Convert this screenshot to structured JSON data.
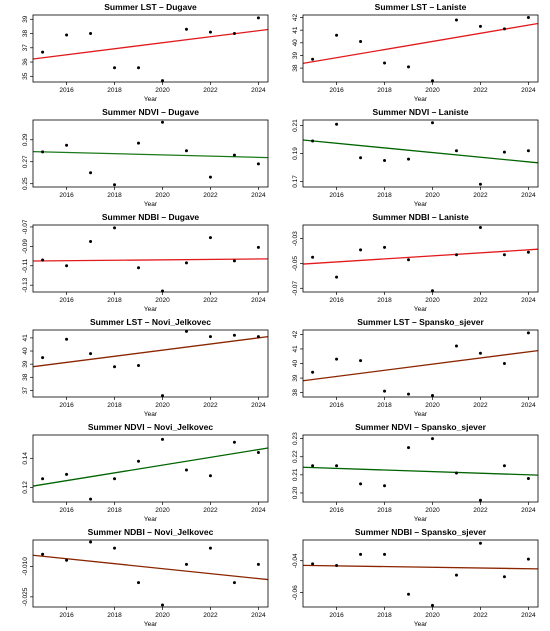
{
  "chart_data": [
    {
      "type": "scatter",
      "title": "Summer LST – Dugave",
      "xlabel": "Year",
      "x": [
        2015,
        2016,
        2017,
        2018,
        2019,
        2020,
        2021,
        2022,
        2023,
        2024
      ],
      "y": [
        36.7,
        37.9,
        38.0,
        35.6,
        35.6,
        34.7,
        38.3,
        38.1,
        38.0,
        39.1
      ],
      "trend": [
        36.3,
        38.2
      ],
      "trend_color": "#e31a1c",
      "xlim": [
        2014.6,
        2024.4
      ],
      "ylim": [
        34.6,
        39.3
      ],
      "xticks": [
        2016,
        2018,
        2020,
        2022,
        2024
      ],
      "yticks": [
        35,
        36,
        37,
        38,
        39
      ],
      "xtick_labels": [
        "2016",
        "2018",
        "2020",
        "2022",
        "2024"
      ],
      "ytick_labels": [
        "35",
        "36",
        "37",
        "38",
        "39"
      ]
    },
    {
      "type": "scatter",
      "title": "Summer LST – Laniste",
      "xlabel": "Year",
      "x": [
        2015,
        2016,
        2017,
        2018,
        2019,
        2020,
        2021,
        2022,
        2023,
        2024
      ],
      "y": [
        38.7,
        40.6,
        40.1,
        38.4,
        38.1,
        37.0,
        41.8,
        41.3,
        41.1,
        42.0
      ],
      "trend": [
        38.5,
        41.4
      ],
      "trend_color": "#e31a1c",
      "xlim": [
        2014.6,
        2024.4
      ],
      "ylim": [
        36.9,
        42.2
      ],
      "xticks": [
        2016,
        2018,
        2020,
        2022,
        2024
      ],
      "yticks": [
        38,
        39,
        40,
        41,
        42
      ],
      "xtick_labels": [
        "2016",
        "2018",
        "2020",
        "2022",
        "2024"
      ],
      "ytick_labels": [
        "38",
        "39",
        "40",
        "41",
        "42"
      ]
    },
    {
      "type": "scatter",
      "title": "Summer NDVI – Dugave",
      "xlabel": "Year",
      "x": [
        2015,
        2016,
        2017,
        2018,
        2019,
        2020,
        2021,
        2022,
        2023,
        2024
      ],
      "y": [
        0.279,
        0.285,
        0.26,
        0.249,
        0.287,
        0.306,
        0.28,
        0.256,
        0.276,
        0.268
      ],
      "trend": [
        0.279,
        0.274
      ],
      "trend_color": "#1a7a1a",
      "xlim": [
        2014.6,
        2024.4
      ],
      "ylim": [
        0.247,
        0.308
      ],
      "xticks": [
        2016,
        2018,
        2020,
        2022,
        2024
      ],
      "yticks": [
        0.25,
        0.27,
        0.29
      ],
      "xtick_labels": [
        "2016",
        "2018",
        "2020",
        "2022",
        "2024"
      ],
      "ytick_labels": [
        "0.25",
        "0.27",
        "0.29"
      ]
    },
    {
      "type": "scatter",
      "title": "Summer NDVI – Laniste",
      "xlabel": "Year",
      "x": [
        2015,
        2016,
        2017,
        2018,
        2019,
        2020,
        2021,
        2022,
        2023,
        2024
      ],
      "y": [
        0.199,
        0.211,
        0.187,
        0.185,
        0.186,
        0.212,
        0.192,
        0.168,
        0.191,
        0.192
      ],
      "trend": [
        0.199,
        0.184
      ],
      "trend_color": "#006400",
      "xlim": [
        2014.6,
        2024.4
      ],
      "ylim": [
        0.166,
        0.214
      ],
      "xticks": [
        2016,
        2018,
        2020,
        2022,
        2024
      ],
      "yticks": [
        0.17,
        0.19,
        0.21
      ],
      "xtick_labels": [
        "2016",
        "2018",
        "2020",
        "2022",
        "2024"
      ],
      "ytick_labels": [
        "0.17",
        "0.19",
        "0.21"
      ]
    },
    {
      "type": "scatter",
      "title": "Summer NDBI – Dugave",
      "xlabel": "Year",
      "x": [
        2015,
        2016,
        2017,
        2018,
        2019,
        2020,
        2021,
        2022,
        2023,
        2024
      ],
      "y": [
        -0.104,
        -0.11,
        -0.085,
        -0.071,
        -0.112,
        -0.136,
        -0.107,
        -0.081,
        -0.105,
        -0.091
      ],
      "trend": [
        -0.105,
        -0.103
      ],
      "trend_color": "#e31a1c",
      "xlim": [
        2014.6,
        2024.4
      ],
      "ylim": [
        -0.137,
        -0.068
      ],
      "xticks": [
        2016,
        2018,
        2020,
        2022,
        2024
      ],
      "yticks": [
        -0.13,
        -0.11,
        -0.09,
        -0.07
      ],
      "xtick_labels": [
        "2016",
        "2018",
        "2020",
        "2022",
        "2024"
      ],
      "ytick_labels": [
        "-0.13",
        "-0.11",
        "-0.09",
        "-0.07"
      ]
    },
    {
      "type": "scatter",
      "title": "Summer NDBI – Laniste",
      "xlabel": "Year",
      "x": [
        2015,
        2016,
        2017,
        2018,
        2019,
        2020,
        2021,
        2022,
        2023,
        2024
      ],
      "y": [
        -0.045,
        -0.061,
        -0.039,
        -0.037,
        -0.047,
        -0.072,
        -0.043,
        -0.021,
        -0.043,
        -0.041
      ],
      "trend": [
        -0.05,
        -0.039
      ],
      "trend_color": "#e31a1c",
      "xlim": [
        2014.6,
        2024.4
      ],
      "ylim": [
        -0.073,
        -0.019
      ],
      "xticks": [
        2016,
        2018,
        2020,
        2022,
        2024
      ],
      "yticks": [
        -0.07,
        -0.05,
        -0.03
      ],
      "xtick_labels": [
        "2016",
        "2018",
        "2020",
        "2022",
        "2024"
      ],
      "ytick_labels": [
        "-0.07",
        "-0.05",
        "-0.03"
      ]
    },
    {
      "type": "scatter",
      "title": "Summer LST – Novi_Jelkovec",
      "xlabel": "Year",
      "x": [
        2015,
        2016,
        2017,
        2018,
        2019,
        2020,
        2021,
        2022,
        2023,
        2024
      ],
      "y": [
        39.5,
        40.9,
        39.8,
        38.8,
        38.9,
        36.6,
        41.5,
        41.1,
        41.2,
        41.1
      ],
      "trend": [
        38.9,
        41.0
      ],
      "trend_color": "#8b2500",
      "xlim": [
        2014.6,
        2024.4
      ],
      "ylim": [
        36.5,
        41.6
      ],
      "xticks": [
        2016,
        2018,
        2020,
        2022,
        2024
      ],
      "yticks": [
        37,
        38,
        39,
        40,
        41
      ],
      "xtick_labels": [
        "2016",
        "2018",
        "2020",
        "2022",
        "2024"
      ],
      "ytick_labels": [
        "37",
        "38",
        "39",
        "40",
        "41"
      ]
    },
    {
      "type": "scatter",
      "title": "Summer LST – Spansko_sjever",
      "xlabel": "Year",
      "x": [
        2015,
        2016,
        2017,
        2018,
        2019,
        2020,
        2021,
        2022,
        2023,
        2024
      ],
      "y": [
        39.4,
        40.3,
        40.2,
        38.1,
        37.9,
        37.8,
        41.2,
        40.7,
        40.0,
        42.1
      ],
      "trend": [
        38.9,
        40.8
      ],
      "trend_color": "#8b2500",
      "xlim": [
        2014.6,
        2024.4
      ],
      "ylim": [
        37.7,
        42.3
      ],
      "xticks": [
        2016,
        2018,
        2020,
        2022,
        2024
      ],
      "yticks": [
        38,
        39,
        40,
        41,
        42
      ],
      "xtick_labels": [
        "2016",
        "2018",
        "2020",
        "2022",
        "2024"
      ],
      "ytick_labels": [
        "38",
        "39",
        "40",
        "41",
        "42"
      ]
    },
    {
      "type": "scatter",
      "title": "Summer NDVI – Novi_Jelkovec",
      "xlabel": "Year",
      "x": [
        2015,
        2016,
        2017,
        2018,
        2019,
        2020,
        2021,
        2022,
        2023,
        2024
      ],
      "y": [
        0.126,
        0.129,
        0.112,
        0.126,
        0.138,
        0.153,
        0.132,
        0.128,
        0.151,
        0.144
      ],
      "trend": [
        0.122,
        0.146
      ],
      "trend_color": "#006400",
      "xlim": [
        2014.6,
        2024.4
      ],
      "ylim": [
        0.11,
        0.156
      ],
      "xticks": [
        2016,
        2018,
        2020,
        2022,
        2024
      ],
      "yticks": [
        0.12,
        0.14
      ],
      "xtick_labels": [
        "2016",
        "2018",
        "2020",
        "2022",
        "2024"
      ],
      "ytick_labels": [
        "0.12",
        "0.14"
      ]
    },
    {
      "type": "scatter",
      "title": "Summer NDVI – Spansko_sjever",
      "xlabel": "Year",
      "x": [
        2015,
        2016,
        2017,
        2018,
        2019,
        2020,
        2021,
        2022,
        2023,
        2024
      ],
      "y": [
        0.215,
        0.215,
        0.205,
        0.204,
        0.225,
        0.23,
        0.211,
        0.196,
        0.215,
        0.208
      ],
      "trend": [
        0.214,
        0.21
      ],
      "trend_color": "#006400",
      "xlim": [
        2014.6,
        2024.4
      ],
      "ylim": [
        0.195,
        0.232
      ],
      "xticks": [
        2016,
        2018,
        2020,
        2022,
        2024
      ],
      "yticks": [
        0.2,
        0.21,
        0.22,
        0.23
      ],
      "xtick_labels": [
        "2016",
        "2018",
        "2020",
        "2022",
        "2024"
      ],
      "ytick_labels": [
        "0.20",
        "0.21",
        "0.22",
        "0.23"
      ]
    },
    {
      "type": "scatter",
      "title": "Summer NDBI – Novi_Jelkovec",
      "xlabel": "Year",
      "x": [
        2015,
        2016,
        2017,
        2018,
        2019,
        2020,
        2021,
        2022,
        2023,
        2024
      ],
      "y": [
        -0.004,
        -0.007,
        0.002,
        -0.001,
        -0.018,
        -0.029,
        -0.009,
        -0.001,
        -0.018,
        -0.009
      ],
      "trend": [
        -0.005,
        -0.016
      ],
      "trend_color": "#8b2500",
      "xlim": [
        2014.6,
        2024.4
      ],
      "ylim": [
        -0.03,
        0.003
      ],
      "xticks": [
        2016,
        2018,
        2020,
        2022,
        2024
      ],
      "yticks": [
        -0.025,
        -0.01
      ],
      "xtick_labels": [
        "2016",
        "2018",
        "2020",
        "2022",
        "2024"
      ],
      "ytick_labels": [
        "-0.025",
        "-0.010"
      ]
    },
    {
      "type": "scatter",
      "title": "Summer NDBI – Spansko_sjever",
      "xlabel": "Year",
      "x": [
        2015,
        2016,
        2017,
        2018,
        2019,
        2020,
        2021,
        2022,
        2023,
        2024
      ],
      "y": [
        -0.042,
        -0.043,
        -0.036,
        -0.036,
        -0.061,
        -0.068,
        -0.049,
        -0.029,
        -0.05,
        -0.039
      ],
      "trend": [
        -0.043,
        -0.045
      ],
      "trend_color": "#8b2500",
      "xlim": [
        2014.6,
        2024.4
      ],
      "ylim": [
        -0.069,
        -0.027
      ],
      "xticks": [
        2016,
        2018,
        2020,
        2022,
        2024
      ],
      "yticks": [
        -0.06,
        -0.04
      ],
      "xtick_labels": [
        "2016",
        "2018",
        "2020",
        "2022",
        "2024"
      ],
      "ytick_labels": [
        "-0.06",
        "-0.04"
      ]
    }
  ]
}
